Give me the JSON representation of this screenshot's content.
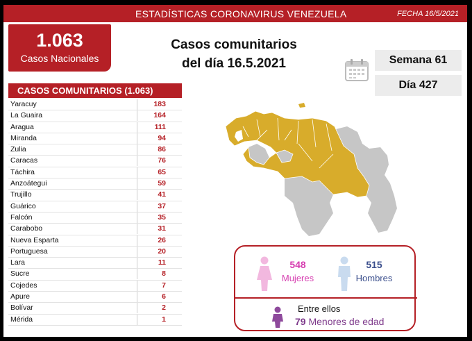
{
  "header": {
    "title": "ESTADÍSTICAS CORONAVIRUS VENEZUELA",
    "date": "FECHA 16/5/2021"
  },
  "national": {
    "value": "1.063",
    "label": "Casos Nacionales"
  },
  "headline": {
    "line1": "Casos comunitarios",
    "line2": "del día 16.5.2021"
  },
  "week": "Semana 61",
  "day": "Día 427",
  "table": {
    "title": "CASOS COMUNITARIOS (1.063)",
    "rows": [
      {
        "state": "Yaracuy",
        "cases": "183"
      },
      {
        "state": "La Guaira",
        "cases": "164"
      },
      {
        "state": "Aragua",
        "cases": "111"
      },
      {
        "state": "Miranda",
        "cases": "94"
      },
      {
        "state": "Zulia",
        "cases": "86"
      },
      {
        "state": "Caracas",
        "cases": "76"
      },
      {
        "state": "Táchira",
        "cases": "65"
      },
      {
        "state": "Anzoátegui",
        "cases": "59"
      },
      {
        "state": "Trujillo",
        "cases": "41"
      },
      {
        "state": "Guárico",
        "cases": "37"
      },
      {
        "state": "Falcón",
        "cases": "35"
      },
      {
        "state": "Carabobo",
        "cases": "31"
      },
      {
        "state": "Nueva Esparta",
        "cases": "26"
      },
      {
        "state": "Portuguesa",
        "cases": "20"
      },
      {
        "state": "Lara",
        "cases": "11"
      },
      {
        "state": "Sucre",
        "cases": "8"
      },
      {
        "state": "Cojedes",
        "cases": "7"
      },
      {
        "state": "Apure",
        "cases": "6"
      },
      {
        "state": "Bolívar",
        "cases": "2"
      },
      {
        "state": "Mérida",
        "cases": "1"
      }
    ]
  },
  "gender": {
    "women_value": "548",
    "women_label": "Mujeres",
    "men_value": "515",
    "men_label": "Hombres",
    "between_label": "Entre ellos",
    "minors_value": "79",
    "minors_label": "Menores de edad"
  },
  "colors": {
    "brand_red": "#b52026",
    "map_highlight": "#d8ac2b",
    "map_gray": "#c6c6c6",
    "women": "#d63db0",
    "men": "#3a4e8c",
    "minors": "#7e3a8b"
  },
  "icons": [
    "calendar-icon",
    "female-icon",
    "male-icon",
    "child-icon"
  ]
}
